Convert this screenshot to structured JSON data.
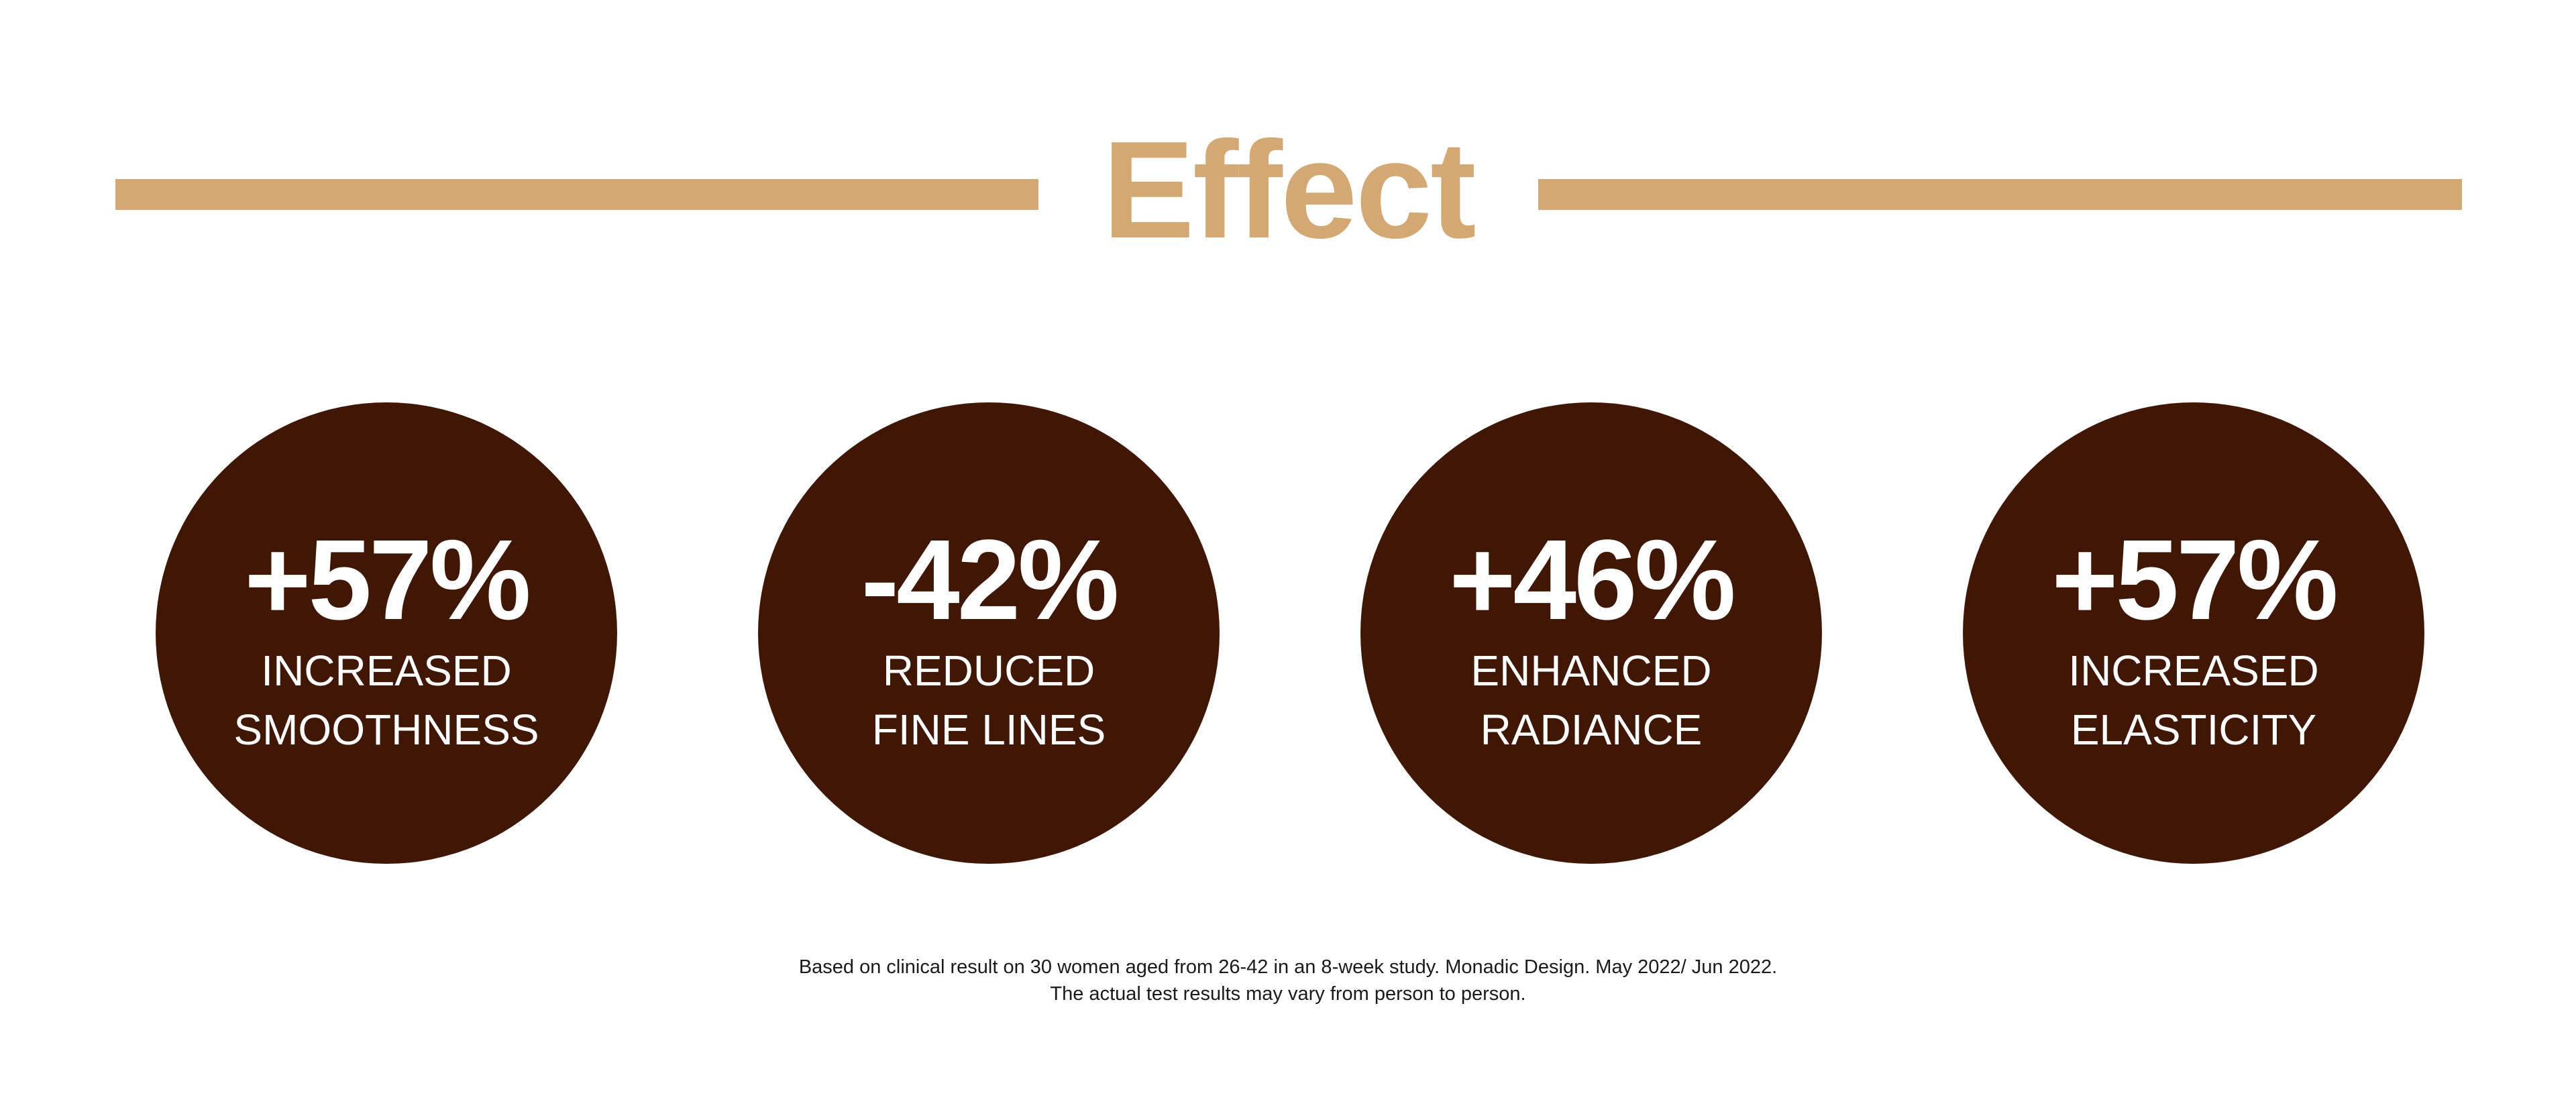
{
  "header": {
    "title": "Effect"
  },
  "stats": [
    {
      "value": "+57%",
      "label_line1": "INCREASED",
      "label_line2": "SMOOTHNESS"
    },
    {
      "value": "-42%",
      "label_line1": "REDUCED",
      "label_line2": "FINE LINES"
    },
    {
      "value": "+46%",
      "label_line1": "ENHANCED",
      "label_line2": "RADIANCE"
    },
    {
      "value": "+57%",
      "label_line1": "INCREASED",
      "label_line2": "ELASTICITY"
    }
  ],
  "footnote": {
    "line1": "Based on clinical result on 30 women aged from 26-42 in an 8-week study. Monadic Design. May 2022/ Jun 2022.",
    "line2": "The actual test results may vary from person to person."
  },
  "colors": {
    "accent": "#d4a872",
    "circle": "#401705",
    "circle_text": "#ffffff",
    "footnote_text": "#1a1a1a",
    "background": "#ffffff"
  }
}
